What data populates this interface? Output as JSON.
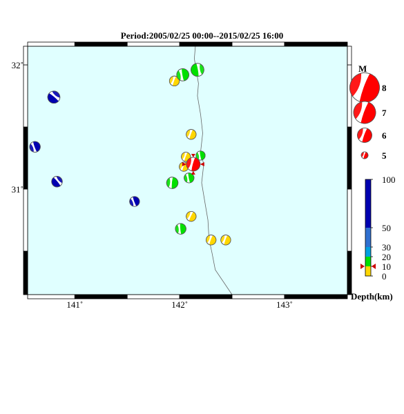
{
  "title": "Period:2005/02/25 00:00--2015/02/25 16:00",
  "map": {
    "lon_range": [
      140.55,
      143.6
    ],
    "lat_range": [
      30.15,
      32.15
    ],
    "lon_ticks": [
      141,
      142,
      143
    ],
    "lat_ticks": [
      31,
      32
    ],
    "lon_tick_labels": [
      "141˚",
      "142˚",
      "143˚"
    ],
    "lat_tick_labels": [
      "31˚",
      "32˚"
    ],
    "land_color": "#e0ffff",
    "trench_line": [
      [
        142.15,
        32.15
      ],
      [
        142.14,
        32.05
      ],
      [
        142.16,
        31.95
      ],
      [
        142.18,
        31.85
      ],
      [
        142.17,
        31.75
      ],
      [
        142.2,
        31.6
      ],
      [
        142.22,
        31.45
      ],
      [
        142.2,
        31.3
      ],
      [
        142.23,
        31.2
      ],
      [
        142.21,
        31.05
      ],
      [
        142.24,
        30.9
      ],
      [
        142.27,
        30.75
      ],
      [
        142.28,
        30.6
      ],
      [
        142.31,
        30.48
      ],
      [
        142.34,
        30.35
      ],
      [
        142.42,
        30.25
      ],
      [
        142.5,
        30.15
      ]
    ]
  },
  "legend": {
    "mag_title": "M",
    "magnitudes": [
      "8",
      "7",
      "6",
      "5"
    ],
    "depth_title": "Depth(km)",
    "depth_labels": [
      "100",
      "50",
      "30",
      "20",
      "10",
      "0"
    ],
    "depth_values": [
      100,
      50,
      30,
      20,
      10,
      0
    ],
    "depth_colors": [
      {
        "from": 0,
        "to": 10,
        "color": "#ffd700"
      },
      {
        "from": 10,
        "to": 20,
        "color": "#00e000"
      },
      {
        "from": 20,
        "to": 30,
        "color": "#00a0e0"
      },
      {
        "from": 30,
        "to": 50,
        "color": "#3070d0"
      },
      {
        "from": 50,
        "to": 100,
        "color": "#0000b0"
      }
    ],
    "marker_depth": 10,
    "mag_color": "#ff0000"
  },
  "events": [
    {
      "lon": 141.95,
      "lat": 31.87,
      "mag": 5.4,
      "depth": 8,
      "color": "#ffd700",
      "rot": 20
    },
    {
      "lon": 142.03,
      "lat": 31.92,
      "mag": 5.7,
      "depth": 15,
      "color": "#00e000",
      "rot": -10
    },
    {
      "lon": 142.17,
      "lat": 31.96,
      "mag": 5.8,
      "depth": 12,
      "color": "#00e000",
      "rot": 170
    },
    {
      "lon": 140.8,
      "lat": 31.74,
      "mag": 5.7,
      "depth": 60,
      "color": "#0000b0",
      "rot": 130
    },
    {
      "lon": 142.11,
      "lat": 31.44,
      "mag": 5.4,
      "depth": 8,
      "color": "#ffd700",
      "rot": 20
    },
    {
      "lon": 140.62,
      "lat": 31.34,
      "mag": 5.5,
      "depth": 60,
      "color": "#0000b0",
      "rot": -20
    },
    {
      "lon": 142.06,
      "lat": 31.26,
      "mag": 5.3,
      "depth": 8,
      "color": "#ffd700",
      "rot": 20
    },
    {
      "lon": 142.2,
      "lat": 31.27,
      "mag": 5.3,
      "depth": 15,
      "color": "#00e000",
      "rot": -10
    },
    {
      "lon": 142.04,
      "lat": 31.18,
      "mag": 5.3,
      "depth": 8,
      "color": "#ffd700",
      "rot": 20
    },
    {
      "lon": 142.13,
      "lat": 31.2,
      "mag": 5.9,
      "depth": 10,
      "color": "#ff0000",
      "rot": 15
    },
    {
      "lon": 141.93,
      "lat": 31.05,
      "mag": 5.6,
      "depth": 15,
      "color": "#00e000",
      "rot": 5
    },
    {
      "lon": 142.09,
      "lat": 31.09,
      "mag": 5.4,
      "depth": 15,
      "color": "#00e000",
      "rot": -10
    },
    {
      "lon": 140.83,
      "lat": 31.06,
      "mag": 5.5,
      "depth": 60,
      "color": "#0000b0",
      "rot": 140
    },
    {
      "lon": 141.57,
      "lat": 30.9,
      "mag": 5.4,
      "depth": 60,
      "color": "#0000b0",
      "rot": -20
    },
    {
      "lon": 142.11,
      "lat": 30.78,
      "mag": 5.4,
      "depth": 8,
      "color": "#ffd700",
      "rot": 25
    },
    {
      "lon": 142.01,
      "lat": 30.68,
      "mag": 5.5,
      "depth": 15,
      "color": "#00e000",
      "rot": -5
    },
    {
      "lon": 142.3,
      "lat": 30.59,
      "mag": 5.4,
      "depth": 8,
      "color": "#ffd700",
      "rot": 20
    },
    {
      "lon": 142.44,
      "lat": 30.59,
      "mag": 5.4,
      "depth": 8,
      "color": "#ffd700",
      "rot": 20
    }
  ]
}
